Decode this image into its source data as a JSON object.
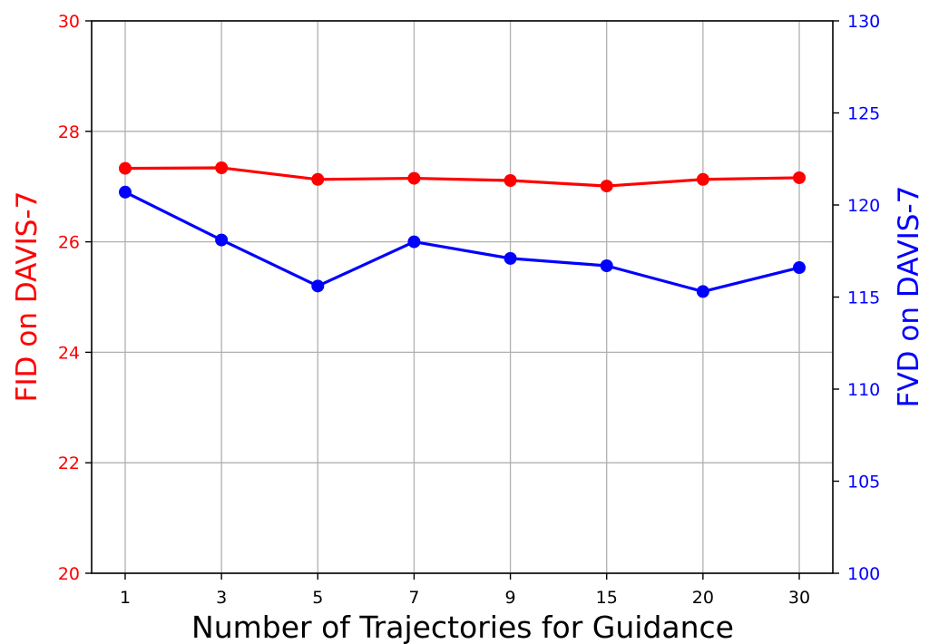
{
  "chart_data": {
    "type": "line",
    "xlabel": "Number of Trajectories for Guidance",
    "categories": [
      "1",
      "3",
      "5",
      "7",
      "9",
      "15",
      "20",
      "30"
    ],
    "y_left": {
      "label": "FID on DAVIS-7",
      "color": "#ff0000",
      "lim": [
        20,
        30
      ],
      "ticks": [
        "20",
        "22",
        "24",
        "26",
        "28",
        "30"
      ]
    },
    "y_right": {
      "label": "FVD on DAVIS-7",
      "color": "#0000ff",
      "lim": [
        100,
        130
      ],
      "ticks": [
        "100",
        "105",
        "110",
        "115",
        "120",
        "125",
        "130"
      ]
    },
    "series": [
      {
        "axis": "left",
        "color": "#ff0000",
        "marker": "circle",
        "values": [
          27.33,
          27.34,
          27.13,
          27.15,
          27.11,
          27.01,
          27.13,
          27.16
        ]
      },
      {
        "axis": "right",
        "color": "#0000ff",
        "marker": "circle",
        "values": [
          120.7,
          118.1,
          115.6,
          118.0,
          117.1,
          116.7,
          115.3,
          116.6
        ]
      }
    ],
    "grid": true
  }
}
